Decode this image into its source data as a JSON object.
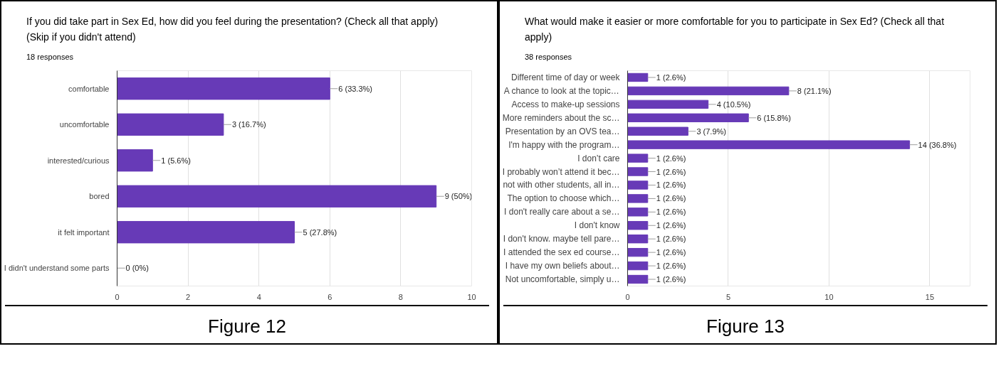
{
  "chart_data": [
    {
      "type": "bar",
      "orientation": "horizontal",
      "title": "If you did take part in Sex Ed, how did you feel during the presentation? (Check all that apply) (Skip if you didn't attend)",
      "subtitle": "18 responses",
      "categories": [
        "comfortable",
        "uncomfortable",
        "interested/curious",
        "bored",
        "it felt important",
        "I didn't understand some parts"
      ],
      "values": [
        6,
        3,
        1,
        9,
        5,
        0
      ],
      "color": "#673ab7",
      "value_labels": [
        "6 (33.3%)",
        "3 (16.7%)",
        "1 (5.6%)",
        "9 (50%)",
        "5 (27.8%)",
        "0 (0%)"
      ],
      "xlim": [
        0,
        10
      ],
      "xticks": [
        0,
        2,
        4,
        6,
        8,
        10
      ],
      "grid": "x",
      "annotations": [
        "Figure 12"
      ]
    },
    {
      "type": "bar",
      "orientation": "horizontal",
      "title": "What would make it easier or more comfortable for you to participate in Sex Ed? (Check all that apply)",
      "subtitle": "38 responses",
      "categories": [
        "Different time of day or week",
        "A chance to look at the topic…",
        "Access to make-up sessions",
        "More reminders about the sc…",
        "Presentation by an OVS tea…",
        "I'm happy with the program…",
        "I don’t care",
        "I probably won’t attend it bec…",
        "not with other students, all in…",
        "The option to choose which…",
        "I don't really care about a se…",
        "I don't know",
        "I don't know. maybe tell pare…",
        "I attended the sex ed course…",
        "I have my own beliefs about…",
        "Not uncomfortable, simply u…"
      ],
      "values": [
        1,
        8,
        4,
        6,
        3,
        14,
        1,
        1,
        1,
        1,
        1,
        1,
        1,
        1,
        1,
        1
      ],
      "color": "#673ab7",
      "value_labels": [
        "1 (2.6%)",
        "8 (21.1%)",
        "4 (10.5%)",
        "6 (15.8%)",
        "3 (7.9%)",
        "14 (36.8%)",
        "1 (2.6%)",
        "1 (2.6%)",
        "1 (2.6%)",
        "1 (2.6%)",
        "1 (2.6%)",
        "1 (2.6%)",
        "1 (2.6%)",
        "1 (2.6%)",
        "1 (2.6%)",
        "1 (2.6%)"
      ],
      "xlim": [
        0,
        17
      ],
      "xticks": [
        0,
        5,
        10,
        15
      ],
      "grid": "x",
      "annotations": [
        "Figure 13"
      ]
    }
  ]
}
